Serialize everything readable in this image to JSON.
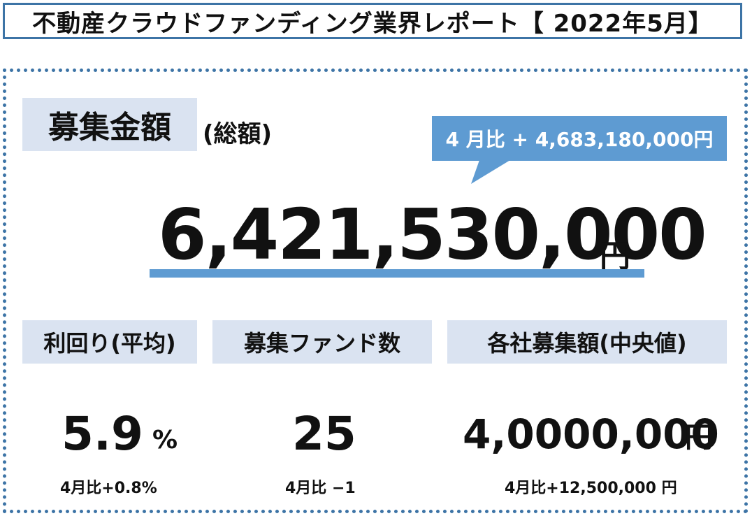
{
  "header": {
    "title": "不動産クラウドファンディング業界レポート【 2022年5月】"
  },
  "total": {
    "label": "募集金額",
    "sublabel": "(総額)",
    "value": "6,421,530,000",
    "unit": "円",
    "delta": "4 月比 + 4,683,180,000円"
  },
  "yield": {
    "label": "利回り(平均)",
    "value": "5.9",
    "unit": "%",
    "delta": "4月比+0.8%"
  },
  "funds": {
    "label": "募集ファンド数",
    "value": "25",
    "delta": "4月比 −1"
  },
  "median": {
    "label": "各社募集額(中央値)",
    "value": "4,0000,000",
    "unit": "円",
    "delta": "4月比+12,500,000 円"
  },
  "colors": {
    "accent": "#5e9bd2",
    "border": "#3d74a6",
    "label_bg": "#dae3f1"
  }
}
